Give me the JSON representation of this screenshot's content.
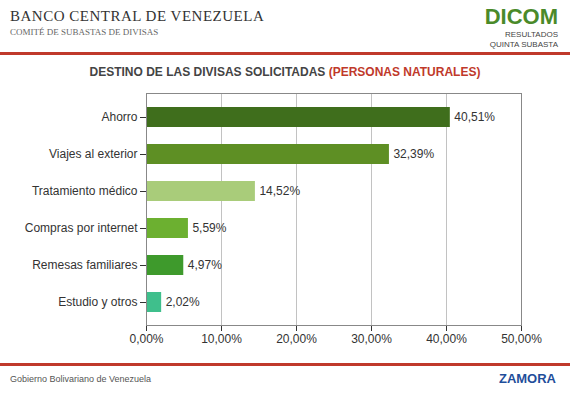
{
  "chart_data": {
    "type": "bar",
    "orientation": "horizontal",
    "title": "DESTINO DE LAS DIVISAS SOLICITADAS (PERSONAS NATURALES)",
    "annotations": [
      "BANCO CENTRAL DE VENEZUELA",
      "COMITÉ DE SUBASTAS DE DIVISAS",
      "DICOM",
      "RESULTADOS",
      "QUINTA SUBASTA",
      "Gobierno Bolivariano de Venezuela",
      "ZAMORA"
    ],
    "categories": [
      "Ahorro",
      "Viajes al exterior",
      "Tratamiento médico",
      "Compras por internet",
      "Remesas familiares",
      "Estudio y otros"
    ],
    "values": [
      40.51,
      32.39,
      14.52,
      5.59,
      4.97,
      2.02
    ],
    "value_labels": [
      "40,51%",
      "32,39%",
      "14,52%",
      "5,59%",
      "4,97%",
      "2,02%"
    ],
    "colors": [
      "#3f6e1c",
      "#5e8f24",
      "#a9cc7a",
      "#6cb030",
      "#3e9a2c",
      "#3fbf8c"
    ],
    "xlim": [
      0,
      50
    ],
    "xticks": [
      {
        "value": 0,
        "label": "0,00%"
      },
      {
        "value": 10,
        "label": "10,00%"
      },
      {
        "value": 20,
        "label": "20,00%"
      },
      {
        "value": 30,
        "label": "30,00%"
      },
      {
        "value": 40,
        "label": "40,00%"
      },
      {
        "value": 50,
        "label": "50,00%"
      }
    ],
    "grid": true,
    "data_labels": true
  }
}
